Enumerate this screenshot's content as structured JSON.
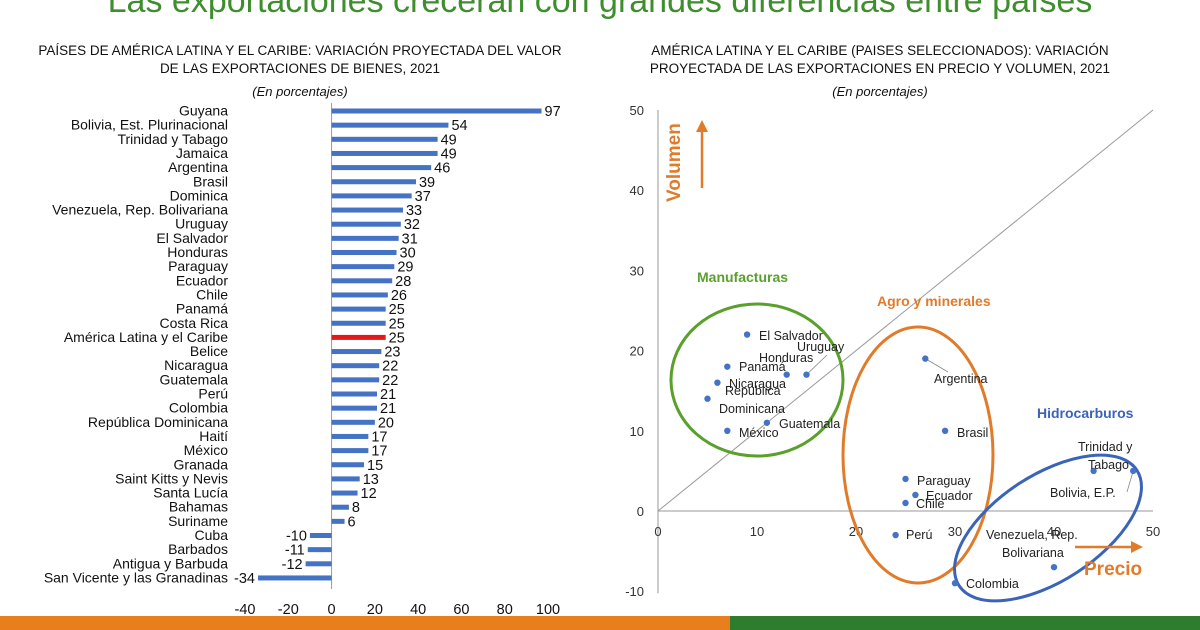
{
  "headline": "Las exportaciones crecerán con grandes diferencias entre países",
  "chart_data": [
    {
      "type": "bar",
      "orientation": "horizontal",
      "title_line1": "PAÍSES DE AMÉRICA LATINA Y EL CARIBE: VARIACIÓN PROYECTADA DEL VALOR",
      "title_line2": "DE LAS EXPORTACIONES DE BIENES, 2021",
      "subtitle": "(En porcentajes)",
      "categories": [
        "Guyana",
        "Bolivia, Est. Plurinacional",
        "Trinidad y Tabago",
        "Jamaica",
        "Argentina",
        "Brasil",
        "Dominica",
        "Venezuela, Rep. Bolivariana",
        "Uruguay",
        "El Salvador",
        "Honduras",
        "Paraguay",
        "Ecuador",
        "Chile",
        "Panamá",
        "Costa Rica",
        "América Latina y el Caribe",
        "Belice",
        "Nicaragua",
        "Guatemala",
        "Perú",
        "Colombia",
        "República Dominicana",
        "Haití",
        "México",
        "Granada",
        "Saint Kitts y Nevis",
        "Santa Lucía",
        "Bahamas",
        "Suriname",
        "Cuba",
        "Barbados",
        "Antigua y Barbuda",
        "San Vicente y las Granadinas"
      ],
      "values": [
        97,
        54,
        49,
        49,
        46,
        39,
        37,
        33,
        32,
        31,
        30,
        29,
        28,
        26,
        25,
        25,
        25,
        23,
        22,
        22,
        21,
        21,
        20,
        17,
        17,
        15,
        13,
        12,
        8,
        6,
        -10,
        -11,
        -12,
        -34
      ],
      "highlight_category": "América Latina y el Caribe",
      "bar_color": "#4472c4",
      "highlight_color": "#e31a1c",
      "xlim": [
        -40,
        100
      ],
      "xticks": [
        -40,
        -20,
        0,
        20,
        40,
        60,
        80,
        100
      ]
    },
    {
      "type": "scatter",
      "title_line1": "AMÉRICA LATINA Y EL CARIBE (PAISES SELECCIONADOS): VARIACIÓN",
      "title_line2": "PROYECTADA DE LAS EXPORTACIONES EN PRECIO Y VOLUMEN, 2021",
      "subtitle": "(En porcentajes)",
      "xlabel": "Precio",
      "ylabel": "Volumen",
      "xlim": [
        0,
        50
      ],
      "ylim": [
        -10,
        50
      ],
      "xticks": [
        0,
        10,
        20,
        30,
        40,
        50
      ],
      "yticks": [
        -10,
        0,
        10,
        20,
        30,
        40,
        50
      ],
      "point_color": "#4472c4",
      "points": [
        {
          "label": "El Salvador",
          "x": 9,
          "y": 22
        },
        {
          "label": "Honduras",
          "x": 13,
          "y": 17
        },
        {
          "label": "Uruguay",
          "x": 15,
          "y": 17
        },
        {
          "label": "Panamá",
          "x": 7,
          "y": 18
        },
        {
          "label": "Nicaragua",
          "x": 6,
          "y": 16
        },
        {
          "label": "República Dominicana",
          "x": 5,
          "y": 14
        },
        {
          "label": "Guatemala",
          "x": 11,
          "y": 11
        },
        {
          "label": "México",
          "x": 7,
          "y": 10
        },
        {
          "label": "Argentina",
          "x": 27,
          "y": 19
        },
        {
          "label": "Brasil",
          "x": 29,
          "y": 10
        },
        {
          "label": "Paraguay",
          "x": 25,
          "y": 4
        },
        {
          "label": "Ecuador",
          "x": 26,
          "y": 2
        },
        {
          "label": "Chile",
          "x": 25,
          "y": 1
        },
        {
          "label": "Perú",
          "x": 24,
          "y": -3
        },
        {
          "label": "Colombia",
          "x": 30,
          "y": -9
        },
        {
          "label": "Venezuela, Rep. Bolivariana",
          "x": 40,
          "y": -7
        },
        {
          "label": "Trinidad y Tabago",
          "x": 44,
          "y": 5
        },
        {
          "label": "Bolivia, E.P.",
          "x": 48,
          "y": 5
        }
      ],
      "groups": [
        {
          "name": "Manufacturas",
          "color": "#5aa02c"
        },
        {
          "name": "Agro y minerales",
          "color": "#e07b2a"
        },
        {
          "name": "Hidrocarburos",
          "color": "#3a64b8"
        }
      ],
      "axis_label_color": "#e07b2a"
    }
  ]
}
